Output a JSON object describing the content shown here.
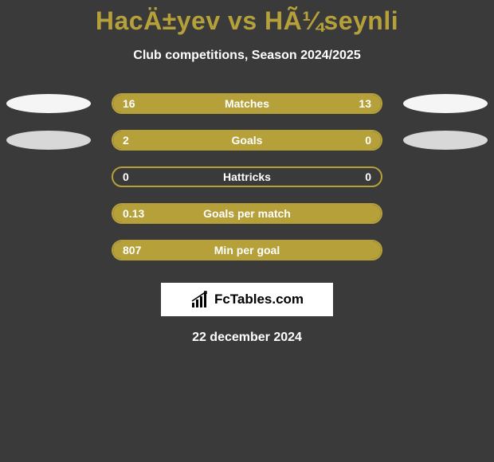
{
  "header": {
    "title": "HacÄ±yev vs HÃ¼seynli",
    "subtitle": "Club competitions, Season 2024/2025"
  },
  "colors": {
    "background": "#3a3a3a",
    "accent": "#b5a03a",
    "text_light": "#ffffff",
    "ellipse_light": "#f5f5f5",
    "ellipse_dark": "#d8d8d8"
  },
  "stats": [
    {
      "label": "Matches",
      "left_value": "16",
      "right_value": "13",
      "left_pct": 55,
      "right_pct": 45,
      "show_left_ellipse": true,
      "show_right_ellipse": true,
      "left_ellipse_color": "#f5f5f5",
      "right_ellipse_color": "#f5f5f5"
    },
    {
      "label": "Goals",
      "left_value": "2",
      "right_value": "0",
      "left_pct": 100,
      "right_pct": 0,
      "show_left_ellipse": true,
      "show_right_ellipse": true,
      "left_ellipse_color": "#d8d8d8",
      "right_ellipse_color": "#d8d8d8"
    },
    {
      "label": "Hattricks",
      "left_value": "0",
      "right_value": "0",
      "left_pct": 0,
      "right_pct": 0,
      "show_left_ellipse": false,
      "show_right_ellipse": false
    },
    {
      "label": "Goals per match",
      "left_value": "0.13",
      "right_value": "",
      "left_pct": 100,
      "right_pct": 0,
      "show_left_ellipse": false,
      "show_right_ellipse": false
    },
    {
      "label": "Min per goal",
      "left_value": "807",
      "right_value": "",
      "left_pct": 100,
      "right_pct": 0,
      "show_left_ellipse": false,
      "show_right_ellipse": false
    }
  ],
  "logo": {
    "text": "FcTables.com"
  },
  "footer": {
    "date": "22 december 2024"
  }
}
